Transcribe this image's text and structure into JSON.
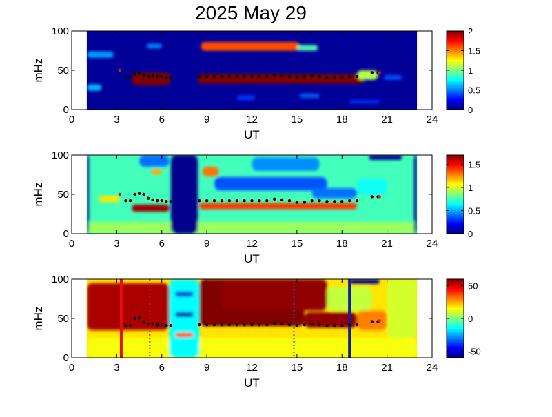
{
  "title": "2025 May 29",
  "colors": {
    "nodata": "#ffffff",
    "background": "#ffffff"
  },
  "chart_data": [
    {
      "type": "heatmap",
      "xlabel": "UT",
      "ylabel": "mHz",
      "xlim": [
        0,
        24
      ],
      "ylim": [
        0,
        100
      ],
      "xticks": [
        "0",
        "3",
        "6",
        "9",
        "12",
        "15",
        "18",
        "21",
        "24"
      ],
      "yticks": [
        "0",
        "50",
        "100"
      ],
      "data_x_range": [
        1,
        23
      ],
      "colorbar": {
        "range": [
          0,
          2
        ],
        "ticks": [
          "0",
          "0.5",
          "1",
          "1.5",
          "2"
        ],
        "colormap": "jet"
      },
      "base_value": 0.05,
      "blobs": [
        {
          "x0": 4.0,
          "x1": 6.6,
          "y0": 31,
          "y1": 47,
          "v": 2.0
        },
        {
          "x0": 8.4,
          "x1": 19.5,
          "y0": 33,
          "y1": 45,
          "v": 2.0
        },
        {
          "x0": 19.0,
          "x1": 20.4,
          "y0": 38,
          "y1": 50,
          "v": 1.1
        },
        {
          "x0": 8.6,
          "x1": 15.2,
          "y0": 75,
          "y1": 86,
          "v": 1.6
        },
        {
          "x0": 15.0,
          "x1": 16.4,
          "y0": 75,
          "y1": 82,
          "v": 0.9
        },
        {
          "x0": 1.0,
          "x1": 2.8,
          "y0": 66,
          "y1": 74,
          "v": 0.55
        },
        {
          "x0": 1.0,
          "x1": 2.0,
          "y0": 24,
          "y1": 32,
          "v": 0.6
        },
        {
          "x0": 5.0,
          "x1": 6.0,
          "y0": 78,
          "y1": 84,
          "v": 0.5
        },
        {
          "x0": 15.2,
          "x1": 16.5,
          "y0": 15,
          "y1": 20,
          "v": 0.45
        },
        {
          "x0": 11.0,
          "x1": 12.2,
          "y0": 12,
          "y1": 18,
          "v": 0.35
        },
        {
          "x0": 18.5,
          "x1": 20.5,
          "y0": 8,
          "y1": 12,
          "v": 0.35
        },
        {
          "x0": 20.8,
          "x1": 22.0,
          "y0": 38,
          "y1": 44,
          "v": 0.4
        }
      ],
      "peak_series": {
        "x": [
          3.6,
          3.9,
          4.2,
          4.5,
          4.8,
          5.1,
          5.4,
          5.7,
          6.0,
          6.3,
          6.6,
          8.5,
          9.0,
          9.5,
          10.0,
          10.5,
          11.0,
          11.5,
          12.0,
          12.5,
          13.0,
          13.5,
          14.0,
          14.5,
          15.0,
          15.5,
          16.0,
          16.5,
          17.0,
          17.5,
          18.0,
          18.5,
          19.0,
          20.0,
          20.4
        ],
        "y": [
          42,
          42,
          45,
          46,
          44,
          42,
          43,
          42,
          42,
          41,
          41,
          42,
          42,
          42,
          42,
          42,
          42,
          42,
          42,
          42,
          42,
          44,
          43,
          42,
          41,
          42,
          43,
          42,
          41,
          41,
          41,
          42,
          42,
          47,
          47
        ]
      },
      "red_markers": [
        {
          "x": 3.2,
          "y": 50
        },
        {
          "x": 20.5,
          "y": 47
        }
      ]
    },
    {
      "type": "heatmap",
      "xlabel": "UT",
      "ylabel": "mHz",
      "xlim": [
        0,
        24
      ],
      "ylim": [
        0,
        100
      ],
      "xticks": [
        "0",
        "3",
        "6",
        "9",
        "12",
        "15",
        "18",
        "21",
        "24"
      ],
      "yticks": [
        "0",
        "50",
        "100"
      ],
      "data_x_range": [
        1,
        23
      ],
      "colorbar": {
        "range": [
          0,
          1.7
        ],
        "ticks": [
          "0",
          "0.5",
          "1",
          "1.5"
        ],
        "colormap": "jet"
      },
      "base_value": 0.75,
      "blobs": [
        {
          "x0": 4.0,
          "x1": 6.5,
          "y0": 28,
          "y1": 37,
          "v": 1.65
        },
        {
          "x0": 8.5,
          "x1": 19.0,
          "y0": 31,
          "y1": 39,
          "v": 1.4
        },
        {
          "x0": 8.7,
          "x1": 9.8,
          "y0": 73,
          "y1": 85,
          "v": 1.3
        },
        {
          "x0": 5.3,
          "x1": 6.0,
          "y0": 75,
          "y1": 82,
          "v": 1.2
        },
        {
          "x0": 1.8,
          "x1": 3.2,
          "y0": 40,
          "y1": 48,
          "v": 1.1
        },
        {
          "x0": 4.5,
          "x1": 6.5,
          "y0": 85,
          "y1": 100,
          "v": 0.4
        },
        {
          "x0": 9.5,
          "x1": 17.0,
          "y0": 55,
          "y1": 72,
          "v": 0.35
        },
        {
          "x0": 12.0,
          "x1": 16.5,
          "y0": 80,
          "y1": 97,
          "v": 0.45
        },
        {
          "x0": 16.0,
          "x1": 19.0,
          "y0": 45,
          "y1": 58,
          "v": 0.4
        },
        {
          "x0": 19.0,
          "x1": 21.0,
          "y0": 50,
          "y1": 70,
          "v": 0.65
        },
        {
          "x0": 1.0,
          "x1": 23.0,
          "y0": 0,
          "y1": 15,
          "v": 0.9
        },
        {
          "x0": 6.6,
          "x1": 8.4,
          "y0": 0,
          "y1": 100,
          "v": 0.02
        },
        {
          "x0": 1.0,
          "x1": 1.15,
          "y0": 0,
          "y1": 100,
          "v": 0.02
        },
        {
          "x0": 22.8,
          "x1": 23.0,
          "y0": 0,
          "y1": 100,
          "v": 0.02
        },
        {
          "x0": 19.8,
          "x1": 22.0,
          "y0": 94,
          "y1": 100,
          "v": 0.05
        }
      ],
      "peak_series": {
        "x": [
          3.6,
          3.9,
          4.2,
          4.5,
          4.8,
          5.1,
          5.4,
          5.7,
          6.0,
          6.3,
          6.6,
          8.5,
          9.0,
          9.5,
          10.0,
          10.5,
          11.0,
          11.5,
          12.0,
          12.5,
          13.0,
          13.5,
          14.0,
          14.5,
          15.0,
          15.5,
          16.0,
          16.5,
          17.0,
          17.5,
          18.0,
          18.5,
          19.0,
          20.0,
          20.4
        ],
        "y": [
          42,
          42,
          50,
          51,
          50,
          45,
          43,
          42,
          42,
          41,
          41,
          42,
          42,
          42,
          42,
          42,
          42,
          42,
          42,
          42,
          42,
          44,
          43,
          42,
          40,
          40,
          42,
          42,
          41,
          41,
          41,
          42,
          42,
          47,
          47
        ]
      },
      "red_markers": [
        {
          "x": 3.2,
          "y": 50
        },
        {
          "x": 20.5,
          "y": 47
        }
      ]
    },
    {
      "type": "heatmap",
      "xlabel": "UT",
      "ylabel": "mHz",
      "xlim": [
        0,
        24
      ],
      "ylim": [
        0,
        100
      ],
      "xticks": [
        "0",
        "3",
        "6",
        "9",
        "12",
        "15",
        "18",
        "21",
        "24"
      ],
      "yticks": [
        "0",
        "50",
        "100"
      ],
      "data_x_range": [
        1,
        23
      ],
      "colorbar": {
        "range": [
          -60,
          60
        ],
        "ticks": [
          "-50",
          "0",
          "50"
        ],
        "colormap": "jet"
      },
      "base_value": 18,
      "blobs": [
        {
          "x0": 1.0,
          "x1": 6.5,
          "y0": 35,
          "y1": 95,
          "v": 55
        },
        {
          "x0": 8.5,
          "x1": 15.5,
          "y0": 40,
          "y1": 100,
          "v": 60
        },
        {
          "x0": 15.5,
          "x1": 19.0,
          "y0": 38,
          "y1": 58,
          "v": 58
        },
        {
          "x0": 10.0,
          "x1": 17.0,
          "y0": 60,
          "y1": 100,
          "v": 58
        },
        {
          "x0": 17.0,
          "x1": 20.0,
          "y0": 60,
          "y1": 90,
          "v": 8
        },
        {
          "x0": 19.0,
          "x1": 21.0,
          "y0": 35,
          "y1": 60,
          "v": 30
        },
        {
          "x0": 1.0,
          "x1": 23.0,
          "y0": 0,
          "y1": 25,
          "v": 14
        },
        {
          "x0": 21.0,
          "x1": 23.0,
          "y0": 25,
          "y1": 100,
          "v": 10
        },
        {
          "x0": 6.5,
          "x1": 8.5,
          "y0": 0,
          "y1": 100,
          "v": -15
        },
        {
          "x0": 6.9,
          "x1": 8.1,
          "y0": 26,
          "y1": 32,
          "v": 35
        },
        {
          "x0": 6.9,
          "x1": 8.1,
          "y0": 52,
          "y1": 58,
          "v": -55
        },
        {
          "x0": 6.9,
          "x1": 8.1,
          "y0": 78,
          "y1": 84,
          "v": -50
        },
        {
          "x0": 18.5,
          "x1": 20.5,
          "y0": 94,
          "y1": 100,
          "v": -58
        }
      ],
      "vlines": [
        {
          "x": 3.3,
          "color": "#e01010",
          "style": "solid",
          "width": 4
        },
        {
          "x": 5.2,
          "color": "#c02020",
          "style": "dotted",
          "width": 2
        },
        {
          "x": 14.8,
          "color": "#3050c0",
          "style": "dotted",
          "width": 2
        },
        {
          "x": 18.5,
          "color": "#1020a0",
          "style": "solid",
          "width": 4
        }
      ],
      "peak_series": {
        "x": [
          3.6,
          3.9,
          4.2,
          4.5,
          4.8,
          5.1,
          5.4,
          5.7,
          6.0,
          6.3,
          6.6,
          8.5,
          9.0,
          9.5,
          10.0,
          10.5,
          11.0,
          11.5,
          12.0,
          12.5,
          13.0,
          13.5,
          14.0,
          14.5,
          15.0,
          15.5,
          16.0,
          16.5,
          17.0,
          17.5,
          18.0,
          18.5,
          19.0,
          20.0,
          20.4
        ],
        "y": [
          41,
          41,
          50,
          51,
          45,
          43,
          43,
          42,
          42,
          41,
          41,
          42,
          42,
          42,
          42,
          42,
          42,
          42,
          42,
          42,
          42,
          44,
          43,
          42,
          41,
          42,
          43,
          42,
          41,
          41,
          41,
          42,
          42,
          46,
          46
        ]
      },
      "red_markers": [
        {
          "x": 20.5,
          "y": 47
        }
      ]
    }
  ]
}
